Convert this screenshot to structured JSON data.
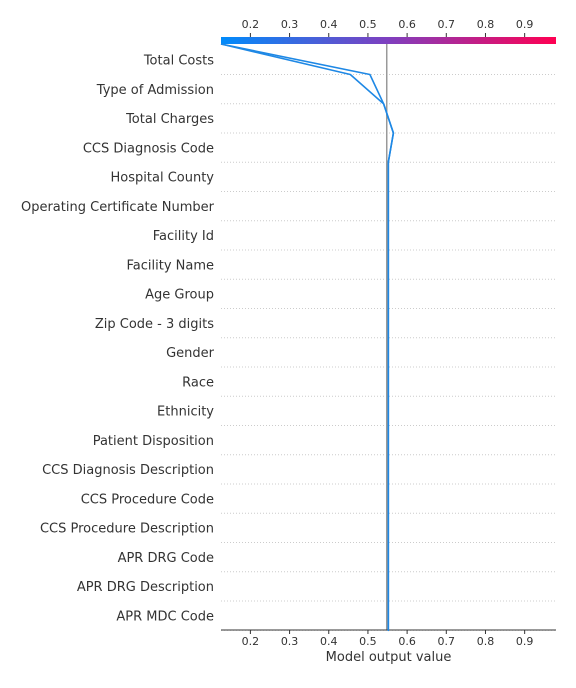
{
  "chart_data": {
    "type": "line",
    "subtype": "shap-decision-plot",
    "title": "",
    "xlabel": "Model output value",
    "ylabel": "",
    "xlim": [
      0.125,
      0.98
    ],
    "xticks": [
      0.2,
      0.3,
      0.4,
      0.5,
      0.6,
      0.7,
      0.8,
      0.9
    ],
    "base_value": 0.548,
    "grid": "dotted horizontal lines",
    "colorbar": {
      "position": "top",
      "low_color": "#008bfb",
      "mid_color": "#7f3fbf",
      "high_color": "#ff0052"
    },
    "features": [
      "Total Costs",
      "Type of Admission",
      "Total Charges",
      "CCS Diagnosis Code",
      "Hospital County",
      "Operating Certificate Number",
      "Facility Id",
      "Facility Name",
      "Age Group",
      "Zip Code - 3 digits",
      "Gender",
      "Race",
      "Ethnicity",
      "Patient Disposition",
      "CCS Diagnosis Description",
      "CCS Procedure Code",
      "CCS Procedure Description",
      "APR DRG Code",
      "APR DRG Description",
      "APR MDC Code"
    ],
    "series": [
      {
        "values": [
          0.125,
          0.505,
          0.54,
          0.565,
          0.552,
          0.552,
          0.552,
          0.552,
          0.552,
          0.552,
          0.552,
          0.552,
          0.552,
          0.552,
          0.552,
          0.552,
          0.552,
          0.552,
          0.552,
          0.552,
          0.552
        ],
        "color": "#1e88e5"
      },
      {
        "values": [
          0.125,
          0.455,
          0.54,
          0.565,
          0.552,
          0.552,
          0.552,
          0.552,
          0.552,
          0.552,
          0.552,
          0.552,
          0.552,
          0.552,
          0.552,
          0.552,
          0.552,
          0.552,
          0.552,
          0.552,
          0.552
        ],
        "color": "#1e88e5"
      }
    ]
  }
}
